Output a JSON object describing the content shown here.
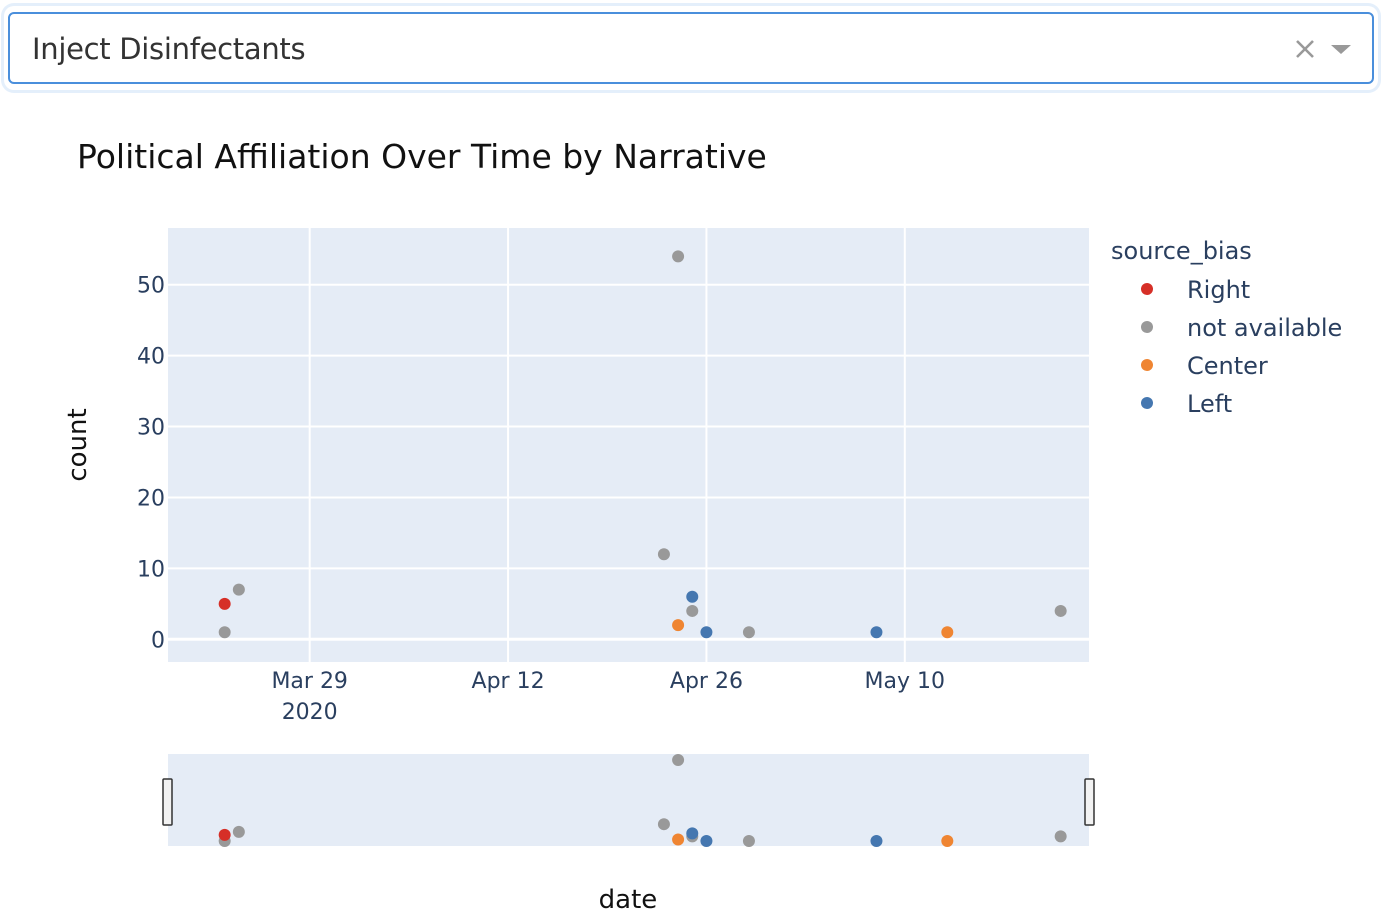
{
  "dropdown": {
    "selected_value": "Inject Disinfectants",
    "clear_icon": "close-icon",
    "toggle_icon": "caret-down-icon"
  },
  "chart_data": {
    "type": "scatter",
    "title": "Political Affiliation Over Time by Narrative",
    "xlabel": "date",
    "ylabel": "count",
    "x_ticks": [
      {
        "date": "2020-03-29",
        "label": "Mar 29",
        "sublabel": "2020"
      },
      {
        "date": "2020-04-12",
        "label": "Apr 12",
        "sublabel": ""
      },
      {
        "date": "2020-04-26",
        "label": "Apr 26",
        "sublabel": ""
      },
      {
        "date": "2020-05-10",
        "label": "May 10",
        "sublabel": ""
      }
    ],
    "y_ticks": [
      0,
      10,
      20,
      30,
      40,
      50
    ],
    "xlim": [
      "2020-03-19",
      "2020-05-23"
    ],
    "ylim": [
      -3.2,
      58
    ],
    "grid": true,
    "legend": {
      "title": "source_bias",
      "placement": "right"
    },
    "rangeslider": true,
    "series": [
      {
        "name": "Right",
        "color": "#d62f27",
        "points": [
          {
            "x": "2020-03-23",
            "y": 5
          }
        ]
      },
      {
        "name": "not available",
        "color": "#999999",
        "points": [
          {
            "x": "2020-03-23",
            "y": 1
          },
          {
            "x": "2020-03-24",
            "y": 7
          },
          {
            "x": "2020-04-23",
            "y": 12
          },
          {
            "x": "2020-04-24",
            "y": 54
          },
          {
            "x": "2020-04-25",
            "y": 4
          },
          {
            "x": "2020-04-29",
            "y": 1
          },
          {
            "x": "2020-05-21",
            "y": 4
          }
        ]
      },
      {
        "name": "Center",
        "color": "#ef8532",
        "points": [
          {
            "x": "2020-04-24",
            "y": 2
          },
          {
            "x": "2020-05-13",
            "y": 1
          }
        ]
      },
      {
        "name": "Left",
        "color": "#4577b0",
        "points": [
          {
            "x": "2020-04-25",
            "y": 6
          },
          {
            "x": "2020-04-26",
            "y": 1
          },
          {
            "x": "2020-05-08",
            "y": 1
          }
        ]
      }
    ]
  }
}
